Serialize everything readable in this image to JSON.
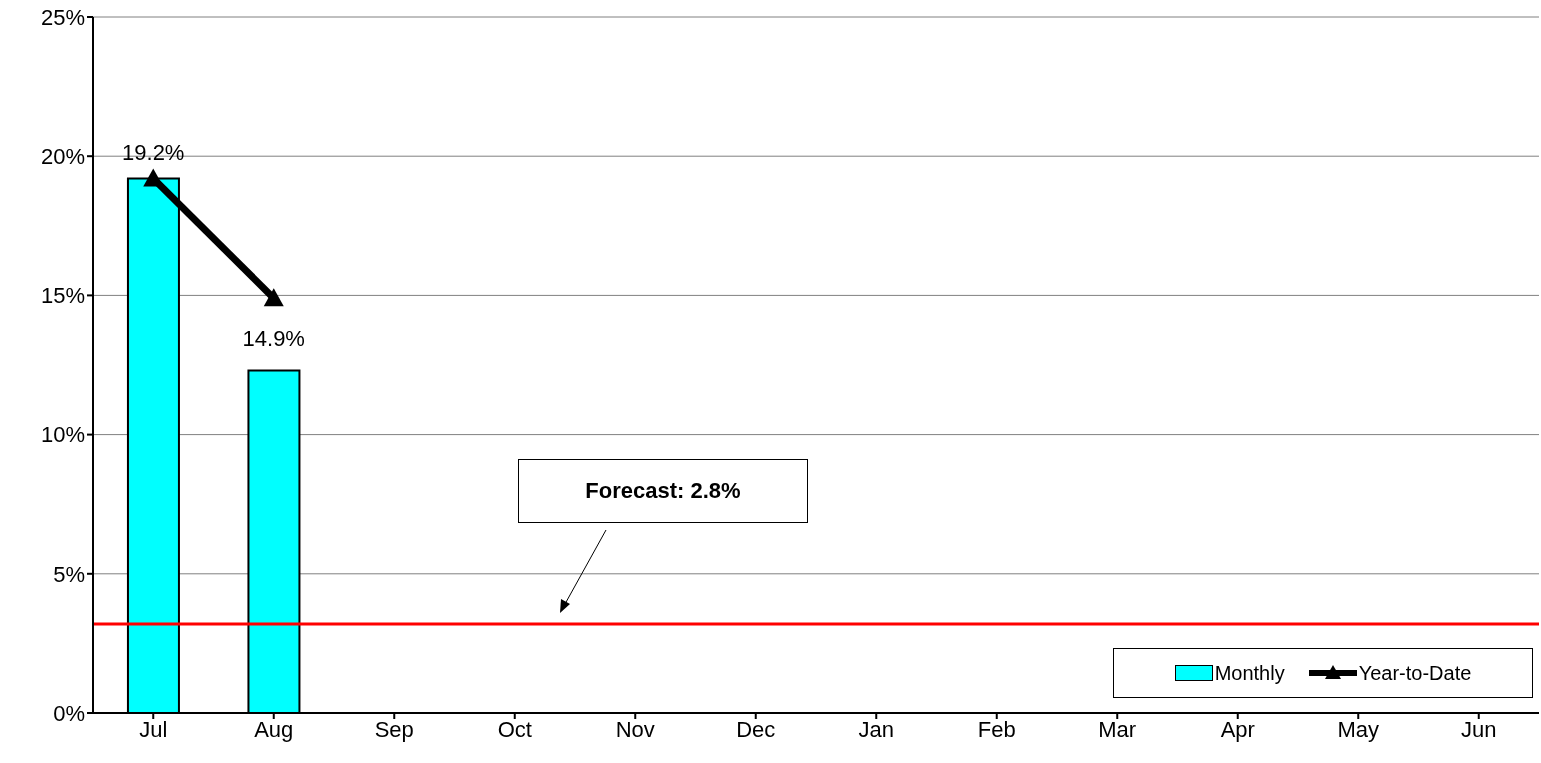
{
  "chart_data": {
    "type": "bar",
    "categories": [
      "Jul",
      "Aug",
      "Sep",
      "Oct",
      "Nov",
      "Dec",
      "Jan",
      "Feb",
      "Mar",
      "Apr",
      "May",
      "Jun"
    ],
    "series": [
      {
        "name": "Monthly",
        "type": "bar",
        "color": "#00ffff",
        "values": [
          19.2,
          12.3,
          null,
          null,
          null,
          null,
          null,
          null,
          null,
          null,
          null,
          null
        ]
      },
      {
        "name": "Year-to-Date",
        "type": "line",
        "color": "#000000",
        "marker": "triangle",
        "values": [
          19.2,
          14.9,
          null,
          null,
          null,
          null,
          null,
          null,
          null,
          null,
          null,
          null
        ],
        "value_labels": [
          "19.2%",
          "14.9%",
          null,
          null,
          null,
          null,
          null,
          null,
          null,
          null,
          null,
          null
        ]
      }
    ],
    "ylim": [
      0,
      25
    ],
    "yticks": [
      {
        "value": 0,
        "label": "0%"
      },
      {
        "value": 5,
        "label": "5%"
      },
      {
        "value": 10,
        "label": "10%"
      },
      {
        "value": 15,
        "label": "15%"
      },
      {
        "value": 20,
        "label": "20%"
      },
      {
        "value": 25,
        "label": "25%"
      }
    ],
    "grid": "y",
    "legend": "bottom right",
    "ref_lines": [
      {
        "axis": "y",
        "value": 3.2,
        "color": "#ff0000"
      }
    ],
    "annotations": [
      "Forecast: 2.8%"
    ]
  }
}
